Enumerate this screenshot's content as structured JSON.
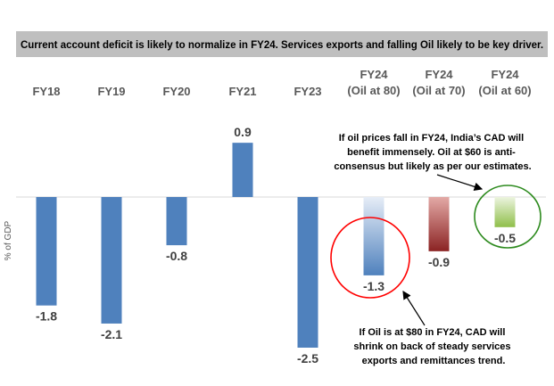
{
  "chart_data": {
    "type": "bar",
    "title": "Current account deficit is likely to normalize in FY24. Services exports and falling Oil likely to be key driver.",
    "ylabel": "% of GDP",
    "xlabel": "",
    "categories": [
      [
        "FY18"
      ],
      [
        "FY19"
      ],
      [
        "FY20"
      ],
      [
        "FY21"
      ],
      [
        "FY23"
      ],
      [
        "FY24",
        "(Oil at 80)"
      ],
      [
        "FY24",
        "(Oil at 70)"
      ],
      [
        "FY24",
        "(Oil at 60)"
      ]
    ],
    "values": [
      -1.8,
      -2.1,
      -0.8,
      0.9,
      -2.5,
      -1.3,
      -0.9,
      -0.5
    ],
    "value_labels": [
      "-1.8",
      "-2.1",
      "-0.8",
      "0.9",
      "-2.5",
      "-1.3",
      "-0.9",
      "-0.5"
    ],
    "ylim": [
      -2.6,
      1.0
    ],
    "grid": false,
    "colors": {
      "bar": "#4f81bd",
      "oil80_top": "#e6edf7",
      "oil80_bottom": "#4f81bd",
      "oil70_top": "#e3a9a6",
      "oil70_bottom": "#8b2323",
      "oil60_top": "#ecf4df",
      "oil60_bottom": "#8fbf4a",
      "red_circle": "#ff0000",
      "green_circle": "#2e8b1f"
    },
    "annotations": {
      "top_note": [
        "If oil prices fall in FY24, India’s CAD will",
        "benefit immensely. Oil at $60 is anti-",
        "consensus but likely as per our estimates."
      ],
      "bottom_note": [
        "If Oil is at $80 in FY24, CAD will",
        "shrink on back of steady services",
        "exports and remittances trend."
      ]
    }
  }
}
